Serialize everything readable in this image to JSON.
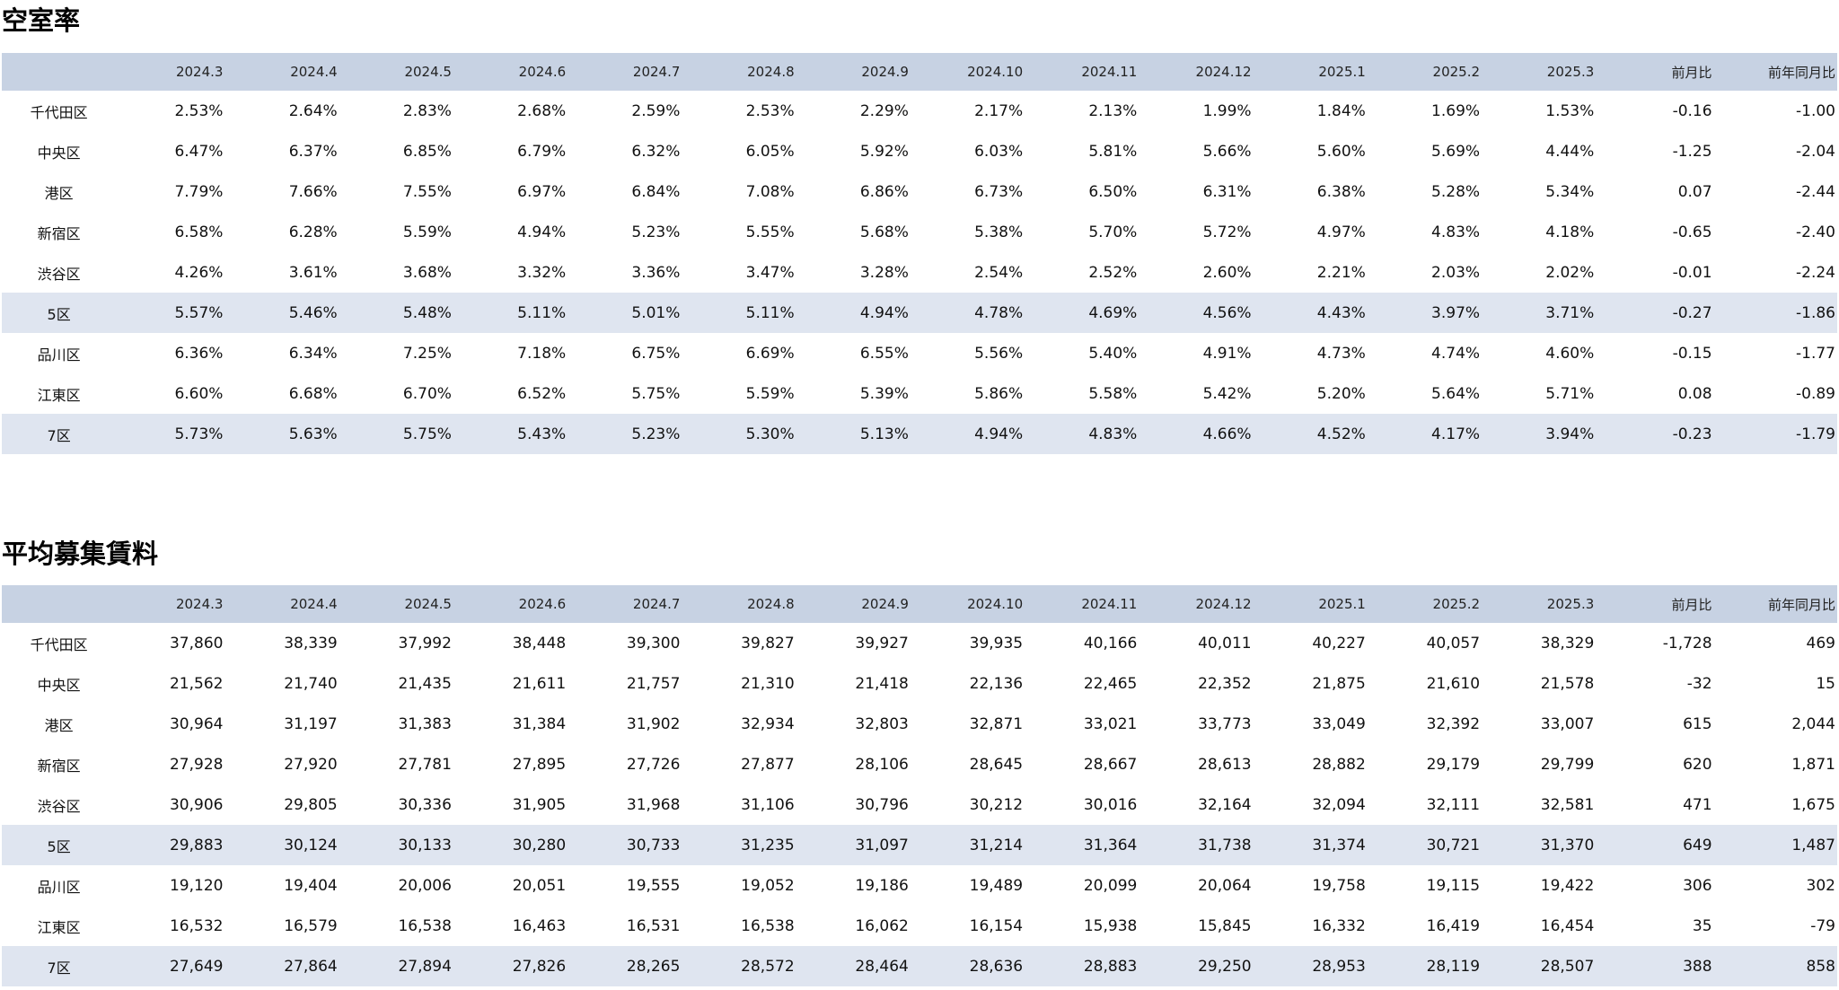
{
  "vacancy": {
    "title": "空室率",
    "headers": [
      "",
      "2024.3",
      "2024.4",
      "2024.5",
      "2024.6",
      "2024.7",
      "2024.8",
      "2024.9",
      "2024.10",
      "2024.11",
      "2024.12",
      "2025.1",
      "2025.2",
      "2025.3",
      "前月比",
      "前年同月比"
    ],
    "rows": [
      {
        "label": "千代田区",
        "values": [
          "2.53%",
          "2.64%",
          "2.83%",
          "2.68%",
          "2.59%",
          "2.53%",
          "2.29%",
          "2.17%",
          "2.13%",
          "1.99%",
          "1.84%",
          "1.69%",
          "1.53%",
          "-0.16",
          "-1.00"
        ]
      },
      {
        "label": "中央区",
        "values": [
          "6.47%",
          "6.37%",
          "6.85%",
          "6.79%",
          "6.32%",
          "6.05%",
          "5.92%",
          "6.03%",
          "5.81%",
          "5.66%",
          "5.60%",
          "5.69%",
          "4.44%",
          "-1.25",
          "-2.04"
        ]
      },
      {
        "label": "港区",
        "values": [
          "7.79%",
          "7.66%",
          "7.55%",
          "6.97%",
          "6.84%",
          "7.08%",
          "6.86%",
          "6.73%",
          "6.50%",
          "6.31%",
          "6.38%",
          "5.28%",
          "5.34%",
          "0.07",
          "-2.44"
        ]
      },
      {
        "label": "新宿区",
        "values": [
          "6.58%",
          "6.28%",
          "5.59%",
          "4.94%",
          "5.23%",
          "5.55%",
          "5.68%",
          "5.38%",
          "5.70%",
          "5.72%",
          "4.97%",
          "4.83%",
          "4.18%",
          "-0.65",
          "-2.40"
        ]
      },
      {
        "label": "渋谷区",
        "values": [
          "4.26%",
          "3.61%",
          "3.68%",
          "3.32%",
          "3.36%",
          "3.47%",
          "3.28%",
          "2.54%",
          "2.52%",
          "2.60%",
          "2.21%",
          "2.03%",
          "2.02%",
          "-0.01",
          "-2.24"
        ]
      },
      {
        "label": "5区",
        "values": [
          "5.57%",
          "5.46%",
          "5.48%",
          "5.11%",
          "5.01%",
          "5.11%",
          "4.94%",
          "4.78%",
          "4.69%",
          "4.56%",
          "4.43%",
          "3.97%",
          "3.71%",
          "-0.27",
          "-1.86"
        ]
      },
      {
        "label": "品川区",
        "values": [
          "6.36%",
          "6.34%",
          "7.25%",
          "7.18%",
          "6.75%",
          "6.69%",
          "6.55%",
          "5.56%",
          "5.40%",
          "4.91%",
          "4.73%",
          "4.74%",
          "4.60%",
          "-0.15",
          "-1.77"
        ]
      },
      {
        "label": "江東区",
        "values": [
          "6.60%",
          "6.68%",
          "6.70%",
          "6.52%",
          "5.75%",
          "5.59%",
          "5.39%",
          "5.86%",
          "5.58%",
          "5.42%",
          "5.20%",
          "5.64%",
          "5.71%",
          "0.08",
          "-0.89"
        ]
      },
      {
        "label": "7区",
        "values": [
          "5.73%",
          "5.63%",
          "5.75%",
          "5.43%",
          "5.23%",
          "5.30%",
          "5.13%",
          "4.94%",
          "4.83%",
          "4.66%",
          "4.52%",
          "4.17%",
          "3.94%",
          "-0.23",
          "-1.79"
        ]
      }
    ]
  },
  "rent": {
    "title": "平均募集賃料",
    "headers": [
      "",
      "2024.3",
      "2024.4",
      "2024.5",
      "2024.6",
      "2024.7",
      "2024.8",
      "2024.9",
      "2024.10",
      "2024.11",
      "2024.12",
      "2025.1",
      "2025.2",
      "2025.3",
      "前月比",
      "前年同月比"
    ],
    "rows": [
      {
        "label": "千代田区",
        "values": [
          "37,860",
          "38,339",
          "37,992",
          "38,448",
          "39,300",
          "39,827",
          "39,927",
          "39,935",
          "40,166",
          "40,011",
          "40,227",
          "40,057",
          "38,329",
          "-1,728",
          "469"
        ]
      },
      {
        "label": "中央区",
        "values": [
          "21,562",
          "21,740",
          "21,435",
          "21,611",
          "21,757",
          "21,310",
          "21,418",
          "22,136",
          "22,465",
          "22,352",
          "21,875",
          "21,610",
          "21,578",
          "-32",
          "15"
        ]
      },
      {
        "label": "港区",
        "values": [
          "30,964",
          "31,197",
          "31,383",
          "31,384",
          "31,902",
          "32,934",
          "32,803",
          "32,871",
          "33,021",
          "33,773",
          "33,049",
          "32,392",
          "33,007",
          "615",
          "2,044"
        ]
      },
      {
        "label": "新宿区",
        "values": [
          "27,928",
          "27,920",
          "27,781",
          "27,895",
          "27,726",
          "27,877",
          "28,106",
          "28,645",
          "28,667",
          "28,613",
          "28,882",
          "29,179",
          "29,799",
          "620",
          "1,871"
        ]
      },
      {
        "label": "渋谷区",
        "values": [
          "30,906",
          "29,805",
          "30,336",
          "31,905",
          "31,968",
          "31,106",
          "30,796",
          "30,212",
          "30,016",
          "32,164",
          "32,094",
          "32,111",
          "32,581",
          "471",
          "1,675"
        ]
      },
      {
        "label": "5区",
        "values": [
          "29,883",
          "30,124",
          "30,133",
          "30,280",
          "30,733",
          "31,235",
          "31,097",
          "31,214",
          "31,364",
          "31,738",
          "31,374",
          "30,721",
          "31,370",
          "649",
          "1,487"
        ]
      },
      {
        "label": "品川区",
        "values": [
          "19,120",
          "19,404",
          "20,006",
          "20,051",
          "19,555",
          "19,052",
          "19,186",
          "19,489",
          "20,099",
          "20,064",
          "19,758",
          "19,115",
          "19,422",
          "306",
          "302"
        ]
      },
      {
        "label": "江東区",
        "values": [
          "16,532",
          "16,579",
          "16,538",
          "16,463",
          "16,531",
          "16,538",
          "16,062",
          "16,154",
          "15,938",
          "15,845",
          "16,332",
          "16,419",
          "16,454",
          "35",
          "-79"
        ]
      },
      {
        "label": "7区",
        "values": [
          "27,649",
          "27,864",
          "27,894",
          "27,826",
          "28,265",
          "28,572",
          "28,464",
          "28,636",
          "28,883",
          "29,250",
          "28,953",
          "28,119",
          "28,507",
          "388",
          "858"
        ]
      }
    ]
  },
  "colors": {
    "header_band": "#c7d2e3",
    "subtotal_band": "#dfe5f0"
  }
}
